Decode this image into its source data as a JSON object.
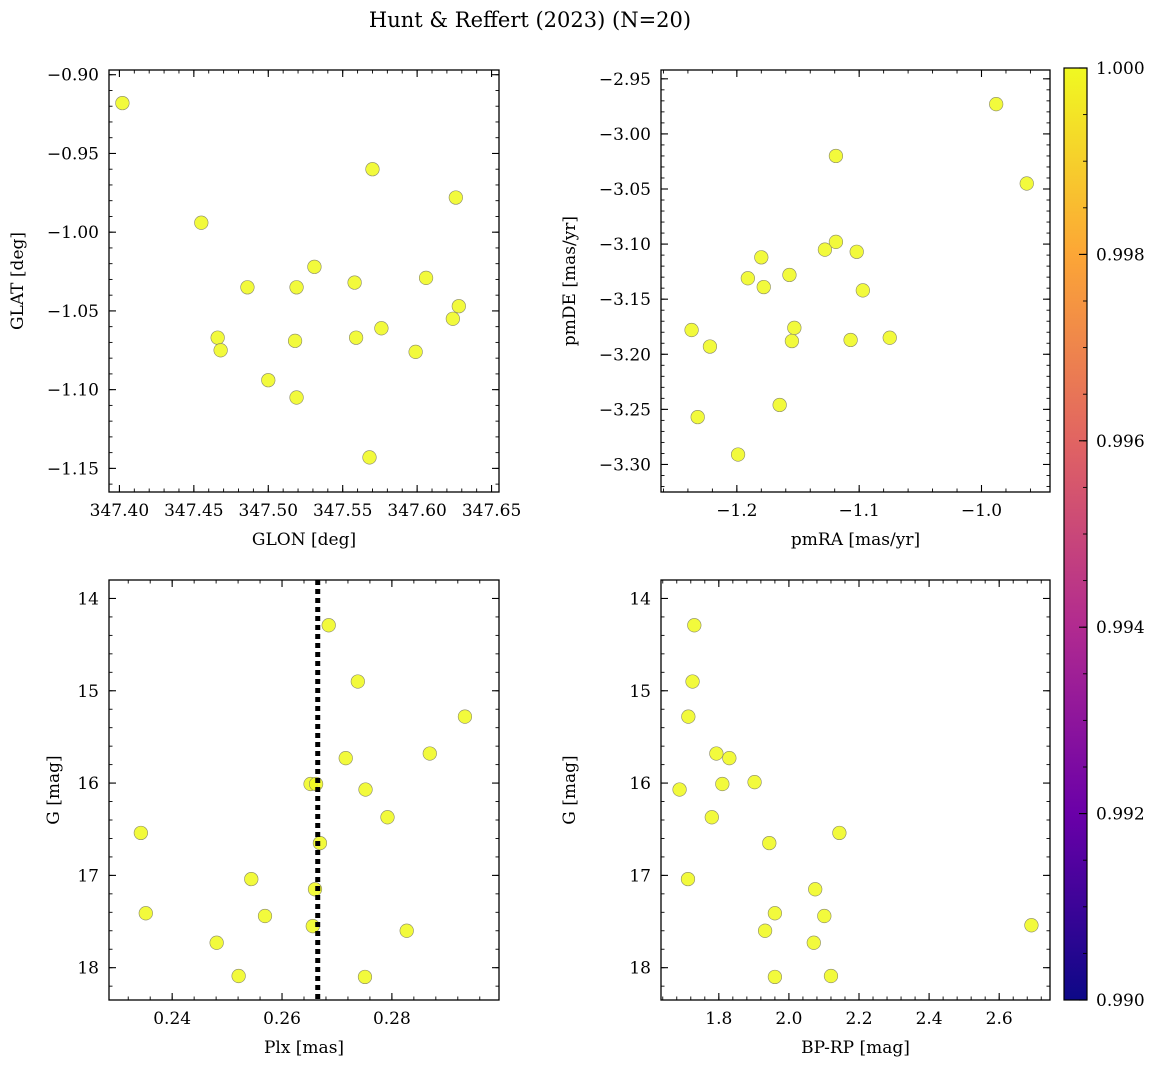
{
  "figure": {
    "title": "Hunt & Reffert (2023) (N=20)"
  },
  "colorbar": {
    "range": [
      0.99,
      1.0
    ],
    "ticks": [
      0.99,
      0.992,
      0.994,
      0.996,
      0.998,
      1.0
    ],
    "tick_labels": [
      "0.990",
      "0.992",
      "0.994",
      "0.996",
      "0.998",
      "1.000"
    ],
    "colormap": "plasma",
    "colormap_stops": [
      "#0d0887",
      "#6a00a8",
      "#b12a90",
      "#e16462",
      "#fca636",
      "#f0f921"
    ]
  },
  "styles": {
    "point_color": "#f0f921",
    "point_edge": "#8a8a6a",
    "reference_line_color": "#000000"
  },
  "chart_data": [
    {
      "type": "scatter",
      "id": "sky",
      "xlabel": "GLON [deg]",
      "ylabel": "GLAT [deg]",
      "xlim": [
        347.393,
        347.655
      ],
      "ylim": [
        -1.165,
        -0.897
      ],
      "xticks": [
        347.4,
        347.45,
        347.5,
        347.55,
        347.6,
        347.65
      ],
      "xtick_labels": [
        "347.40",
        "347.45",
        "347.50",
        "347.55",
        "347.60",
        "347.65"
      ],
      "yticks": [
        -0.9,
        -0.95,
        -1.0,
        -1.05,
        -1.1,
        -1.15
      ],
      "ytick_labels": [
        "−0.90",
        "−0.95",
        "−1.00",
        "−1.05",
        "−1.10",
        "−1.15"
      ],
      "points": [
        {
          "x": 347.402,
          "y": -0.918
        },
        {
          "x": 347.455,
          "y": -0.994
        },
        {
          "x": 347.57,
          "y": -0.96
        },
        {
          "x": 347.626,
          "y": -0.978
        },
        {
          "x": 347.486,
          "y": -1.035
        },
        {
          "x": 347.519,
          "y": -1.035
        },
        {
          "x": 347.531,
          "y": -1.022
        },
        {
          "x": 347.558,
          "y": -1.032
        },
        {
          "x": 347.606,
          "y": -1.029
        },
        {
          "x": 347.628,
          "y": -1.047
        },
        {
          "x": 347.624,
          "y": -1.055
        },
        {
          "x": 347.466,
          "y": -1.067
        },
        {
          "x": 347.468,
          "y": -1.075
        },
        {
          "x": 347.518,
          "y": -1.069
        },
        {
          "x": 347.559,
          "y": -1.067
        },
        {
          "x": 347.576,
          "y": -1.061
        },
        {
          "x": 347.599,
          "y": -1.076
        },
        {
          "x": 347.5,
          "y": -1.094
        },
        {
          "x": 347.519,
          "y": -1.105
        },
        {
          "x": 347.568,
          "y": -1.143
        }
      ]
    },
    {
      "type": "scatter",
      "id": "proper-motion",
      "xlabel": "pmRA [mas/yr]",
      "ylabel": "pmDE [mas/yr]",
      "xlim": [
        -1.262,
        -0.944
      ],
      "ylim": [
        -3.325,
        -2.942
      ],
      "xticks": [
        -1.2,
        -1.1,
        -1.0
      ],
      "xtick_labels": [
        "−1.2",
        "−1.1",
        "−1.0"
      ],
      "yticks": [
        -2.95,
        -3.0,
        -3.05,
        -3.1,
        -3.15,
        -3.2,
        -3.25,
        -3.3
      ],
      "ytick_labels": [
        "−2.95",
        "−3.00",
        "−3.05",
        "−3.10",
        "−3.15",
        "−3.20",
        "−3.25",
        "−3.30"
      ],
      "points": [
        {
          "x": -0.988,
          "y": -2.973
        },
        {
          "x": -0.963,
          "y": -3.045
        },
        {
          "x": -1.119,
          "y": -3.02
        },
        {
          "x": -1.119,
          "y": -3.098
        },
        {
          "x": -1.128,
          "y": -3.105
        },
        {
          "x": -1.102,
          "y": -3.107
        },
        {
          "x": -1.18,
          "y": -3.112
        },
        {
          "x": -1.157,
          "y": -3.128
        },
        {
          "x": -1.191,
          "y": -3.131
        },
        {
          "x": -1.178,
          "y": -3.139
        },
        {
          "x": -1.097,
          "y": -3.142
        },
        {
          "x": -1.153,
          "y": -3.176
        },
        {
          "x": -1.237,
          "y": -3.178
        },
        {
          "x": -1.075,
          "y": -3.185
        },
        {
          "x": -1.107,
          "y": -3.187
        },
        {
          "x": -1.155,
          "y": -3.188
        },
        {
          "x": -1.222,
          "y": -3.193
        },
        {
          "x": -1.165,
          "y": -3.246
        },
        {
          "x": -1.232,
          "y": -3.257
        },
        {
          "x": -1.199,
          "y": -3.291
        }
      ]
    },
    {
      "type": "scatter",
      "id": "parallax-magnitude",
      "xlabel": "Plx [mas]",
      "ylabel": "G [mag]",
      "xlim": [
        0.2285,
        0.2995
      ],
      "ylim": [
        18.35,
        13.8
      ],
      "y_inverted": true,
      "reference_x": 0.2665,
      "xticks": [
        0.24,
        0.26,
        0.28
      ],
      "xtick_labels": [
        "0.24",
        "0.26",
        "0.28"
      ],
      "yticks": [
        14,
        15,
        16,
        17,
        18
      ],
      "ytick_labels": [
        "14",
        "15",
        "16",
        "17",
        "18"
      ],
      "points": [
        {
          "x": 0.2685,
          "y": 14.29
        },
        {
          "x": 0.2738,
          "y": 14.9
        },
        {
          "x": 0.2933,
          "y": 15.28
        },
        {
          "x": 0.2869,
          "y": 15.68
        },
        {
          "x": 0.2716,
          "y": 15.73
        },
        {
          "x": 0.2652,
          "y": 16.01
        },
        {
          "x": 0.2662,
          "y": 16.01
        },
        {
          "x": 0.2752,
          "y": 16.07
        },
        {
          "x": 0.2792,
          "y": 16.37
        },
        {
          "x": 0.2343,
          "y": 16.54
        },
        {
          "x": 0.2669,
          "y": 16.65
        },
        {
          "x": 0.2544,
          "y": 17.04
        },
        {
          "x": 0.266,
          "y": 17.15
        },
        {
          "x": 0.2352,
          "y": 17.41
        },
        {
          "x": 0.2569,
          "y": 17.44
        },
        {
          "x": 0.2656,
          "y": 17.55
        },
        {
          "x": 0.2827,
          "y": 17.6
        },
        {
          "x": 0.2481,
          "y": 17.73
        },
        {
          "x": 0.2521,
          "y": 18.09
        },
        {
          "x": 0.2751,
          "y": 18.1
        }
      ]
    },
    {
      "type": "scatter",
      "id": "color-magnitude",
      "xlabel": "BP-RP [mag]",
      "ylabel": "G [mag]",
      "xlim": [
        1.635,
        2.745
      ],
      "ylim": [
        18.35,
        13.8
      ],
      "y_inverted": true,
      "xticks": [
        1.8,
        2.0,
        2.2,
        2.4,
        2.6
      ],
      "xtick_labels": [
        "1.8",
        "2.0",
        "2.2",
        "2.4",
        "2.6"
      ],
      "yticks": [
        14,
        15,
        16,
        17,
        18
      ],
      "ytick_labels": [
        "14",
        "15",
        "16",
        "17",
        "18"
      ],
      "points": [
        {
          "x": 1.73,
          "y": 14.29
        },
        {
          "x": 1.725,
          "y": 14.9
        },
        {
          "x": 1.713,
          "y": 15.28
        },
        {
          "x": 1.793,
          "y": 15.68
        },
        {
          "x": 1.83,
          "y": 15.73
        },
        {
          "x": 1.902,
          "y": 15.99
        },
        {
          "x": 1.81,
          "y": 16.01
        },
        {
          "x": 1.688,
          "y": 16.07
        },
        {
          "x": 1.78,
          "y": 16.37
        },
        {
          "x": 2.144,
          "y": 16.54
        },
        {
          "x": 1.944,
          "y": 16.65
        },
        {
          "x": 1.712,
          "y": 17.04
        },
        {
          "x": 2.075,
          "y": 17.15
        },
        {
          "x": 1.96,
          "y": 17.41
        },
        {
          "x": 2.101,
          "y": 17.44
        },
        {
          "x": 2.692,
          "y": 17.54
        },
        {
          "x": 1.932,
          "y": 17.6
        },
        {
          "x": 2.071,
          "y": 17.73
        },
        {
          "x": 1.96,
          "y": 18.1
        },
        {
          "x": 2.12,
          "y": 18.09
        }
      ]
    }
  ]
}
